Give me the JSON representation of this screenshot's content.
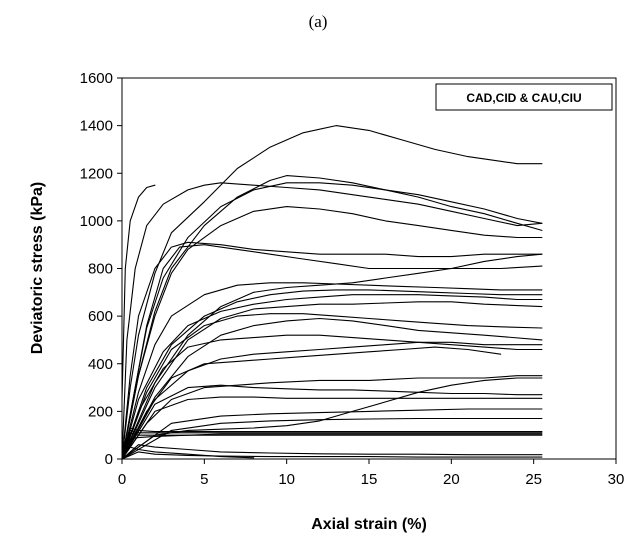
{
  "caption": "(a)",
  "chart_data": {
    "type": "line",
    "title": "",
    "xlabel": "Axial strain (%)",
    "ylabel": "Deviatoric stress (kPa)",
    "xlim": [
      0,
      30
    ],
    "ylim": [
      0,
      1600
    ],
    "xticks": [
      0,
      5,
      10,
      15,
      20,
      25,
      30
    ],
    "yticks": [
      0,
      200,
      400,
      600,
      800,
      1000,
      1200,
      1400,
      1600
    ],
    "grid": false,
    "legend": {
      "text": "CAD,CID & CAU,CIU",
      "position": "top-right"
    },
    "series": [
      {
        "x": [
          0,
          0.5,
          1,
          2,
          3,
          5,
          7,
          9,
          11,
          13,
          15,
          17,
          19,
          21,
          23,
          24,
          25.5
        ],
        "y": [
          0,
          300,
          520,
          780,
          950,
          1080,
          1220,
          1310,
          1370,
          1400,
          1380,
          1340,
          1300,
          1270,
          1250,
          1240,
          1240
        ]
      },
      {
        "x": [
          0,
          0.3,
          0.8,
          1.5,
          2.5,
          4,
          5,
          6,
          8,
          10,
          12,
          14,
          16,
          18,
          20,
          22,
          24,
          25.5
        ],
        "y": [
          0,
          500,
          800,
          980,
          1070,
          1130,
          1150,
          1160,
          1150,
          1140,
          1130,
          1110,
          1090,
          1070,
          1040,
          1010,
          980,
          990
        ]
      },
      {
        "x": [
          0,
          0.8,
          1.5,
          2.5,
          4,
          6,
          8,
          10,
          12,
          14,
          16,
          18,
          20,
          22,
          24,
          25.5
        ],
        "y": [
          0,
          300,
          550,
          760,
          930,
          1060,
          1130,
          1160,
          1160,
          1150,
          1130,
          1110,
          1080,
          1050,
          1010,
          990
        ]
      },
      {
        "x": [
          0,
          1,
          2,
          3,
          5,
          7,
          9,
          10,
          12,
          14,
          16,
          18,
          20,
          22,
          24,
          25.5
        ],
        "y": [
          0,
          350,
          620,
          800,
          980,
          1100,
          1170,
          1190,
          1180,
          1160,
          1130,
          1100,
          1060,
          1030,
          990,
          960
        ]
      },
      {
        "x": [
          0,
          1,
          2,
          3,
          4,
          6,
          8,
          10,
          12,
          14,
          16,
          18,
          20,
          22,
          24,
          25.5
        ],
        "y": [
          0,
          350,
          600,
          780,
          880,
          980,
          1040,
          1060,
          1050,
          1030,
          1000,
          980,
          960,
          940,
          930,
          930
        ]
      },
      {
        "x": [
          0,
          0.5,
          1,
          2,
          3,
          4,
          6,
          8,
          10,
          12,
          14,
          16,
          18,
          20,
          22,
          24,
          25.5
        ],
        "y": [
          0,
          350,
          600,
          800,
          890,
          910,
          900,
          880,
          870,
          860,
          860,
          860,
          850,
          850,
          860,
          860,
          860
        ]
      },
      {
        "x": [
          0,
          0.8,
          1.5,
          2.5,
          3.5,
          5,
          7,
          9,
          11,
          13,
          15,
          17,
          19,
          21,
          23,
          25.5
        ],
        "y": [
          0,
          300,
          560,
          800,
          890,
          900,
          880,
          860,
          840,
          820,
          800,
          800,
          800,
          800,
          800,
          810
        ]
      },
      {
        "x": [
          0,
          2,
          4,
          6,
          8,
          10,
          12,
          14,
          16,
          18,
          20,
          22,
          24,
          25.5
        ],
        "y": [
          0,
          320,
          520,
          640,
          700,
          720,
          730,
          740,
          760,
          780,
          800,
          830,
          850,
          860
        ]
      },
      {
        "x": [
          0,
          1,
          2,
          3,
          5,
          7,
          9,
          11,
          13,
          15,
          17,
          19,
          21,
          23,
          25.5
        ],
        "y": [
          0,
          280,
          480,
          600,
          690,
          730,
          740,
          740,
          735,
          730,
          725,
          720,
          715,
          710,
          710
        ]
      },
      {
        "x": [
          0,
          1.5,
          3,
          5,
          7,
          9,
          11,
          13,
          15,
          17,
          19,
          21,
          23,
          25.5
        ],
        "y": [
          0,
          300,
          480,
          600,
          660,
          690,
          705,
          710,
          710,
          705,
          700,
          695,
          690,
          690
        ]
      },
      {
        "x": [
          0,
          1,
          2.5,
          4,
          6,
          8,
          10,
          12,
          14,
          16,
          18,
          20,
          22,
          24,
          25.5
        ],
        "y": [
          0,
          250,
          450,
          560,
          620,
          650,
          670,
          680,
          690,
          690,
          690,
          685,
          680,
          670,
          670
        ]
      },
      {
        "x": [
          0,
          2,
          4,
          6,
          8,
          10,
          12,
          14,
          16,
          18,
          20,
          22,
          25.5
        ],
        "y": [
          0,
          300,
          500,
          590,
          630,
          640,
          650,
          650,
          655,
          660,
          660,
          650,
          640
        ]
      },
      {
        "x": [
          0,
          1.5,
          3,
          5,
          7,
          9,
          11,
          13,
          15,
          17,
          19,
          21,
          23,
          25.5
        ],
        "y": [
          0,
          280,
          460,
          560,
          600,
          610,
          610,
          600,
          590,
          580,
          570,
          560,
          555,
          550
        ]
      },
      {
        "x": [
          0,
          2,
          4,
          6,
          8,
          10,
          12,
          14,
          16,
          18,
          20,
          22,
          25.5
        ],
        "y": [
          0,
          260,
          430,
          520,
          560,
          580,
          590,
          580,
          560,
          540,
          530,
          520,
          500
        ]
      },
      {
        "x": [
          0,
          1,
          2.5,
          4,
          6,
          8,
          10,
          12,
          14,
          16,
          18,
          20,
          22,
          24,
          25.5
        ],
        "y": [
          0,
          200,
          380,
          470,
          500,
          510,
          520,
          520,
          510,
          500,
          490,
          480,
          470,
          460,
          460
        ]
      },
      {
        "x": [
          0,
          2,
          4,
          6,
          8,
          10,
          12,
          14,
          16,
          18,
          20,
          22,
          24,
          25.5
        ],
        "y": [
          0,
          250,
          370,
          420,
          440,
          450,
          460,
          470,
          480,
          490,
          490,
          480,
          480,
          480
        ]
      },
      {
        "x": [
          0,
          1.5,
          3,
          5,
          7,
          9,
          11,
          13,
          15,
          17,
          19,
          21,
          23
        ],
        "y": [
          0,
          200,
          340,
          400,
          410,
          420,
          430,
          440,
          450,
          460,
          470,
          460,
          440
        ]
      },
      {
        "x": [
          0,
          1.5,
          3,
          5,
          7,
          9,
          12,
          15,
          18,
          20,
          22,
          24,
          25.5
        ],
        "y": [
          0,
          150,
          250,
          300,
          310,
          320,
          330,
          330,
          340,
          340,
          340,
          350,
          350
        ]
      },
      {
        "x": [
          0,
          2,
          4,
          6,
          8,
          10,
          12,
          14,
          16,
          18,
          20,
          22,
          24,
          25.5
        ],
        "y": [
          0,
          230,
          300,
          310,
          300,
          295,
          290,
          290,
          285,
          280,
          275,
          275,
          270,
          270
        ]
      },
      {
        "x": [
          0,
          2,
          4,
          6,
          8,
          10,
          12,
          14,
          16,
          18,
          20,
          22,
          24,
          25.5
        ],
        "y": [
          0,
          200,
          250,
          260,
          260,
          255,
          255,
          255,
          255,
          255,
          255,
          255,
          255,
          255
        ]
      },
      {
        "x": [
          0,
          3,
          6,
          9,
          12,
          15,
          18,
          21,
          24,
          25.5
        ],
        "y": [
          0,
          150,
          180,
          190,
          195,
          200,
          205,
          210,
          210,
          210
        ]
      },
      {
        "x": [
          0,
          2,
          4,
          6,
          8,
          10,
          12,
          14,
          16,
          18,
          20,
          22,
          24,
          25.5
        ],
        "y": [
          0,
          100,
          120,
          125,
          130,
          140,
          160,
          200,
          240,
          280,
          310,
          330,
          340,
          340
        ]
      },
      {
        "x": [
          0,
          3,
          6,
          9,
          12,
          15,
          18,
          21,
          24,
          25.5
        ],
        "y": [
          0,
          120,
          150,
          160,
          165,
          168,
          170,
          170,
          170,
          170
        ]
      },
      {
        "x": [
          0,
          0.5,
          1,
          2,
          4,
          6,
          9,
          12,
          15,
          18,
          21,
          24,
          25.5
        ],
        "y": [
          0,
          110,
          100,
          100,
          100,
          105,
          105,
          105,
          105,
          105,
          105,
          105,
          105
        ]
      },
      {
        "x": [
          0,
          0.5,
          1,
          2,
          4,
          6,
          9,
          12,
          15,
          18,
          21,
          24,
          25.5
        ],
        "y": [
          0,
          120,
          110,
          110,
          110,
          110,
          110,
          110,
          110,
          110,
          110,
          110,
          110
        ]
      },
      {
        "x": [
          0,
          0.5,
          1,
          2,
          4,
          6,
          9,
          12,
          15,
          18,
          21,
          24,
          25.5
        ],
        "y": [
          0,
          130,
          120,
          115,
          115,
          115,
          115,
          115,
          115,
          115,
          115,
          115,
          115
        ]
      },
      {
        "x": [
          0,
          0.5,
          1,
          2,
          4,
          6,
          9,
          12,
          15,
          18,
          21,
          24,
          25.5
        ],
        "y": [
          0,
          85,
          90,
          95,
          100,
          100,
          100,
          100,
          100,
          100,
          100,
          100,
          100
        ]
      },
      {
        "x": [
          0,
          1,
          2,
          4,
          6,
          9,
          12,
          15,
          18,
          21,
          24,
          25.5
        ],
        "y": [
          0,
          60,
          50,
          40,
          30,
          25,
          22,
          20,
          20,
          18,
          18,
          18
        ]
      },
      {
        "x": [
          0,
          1,
          2,
          4,
          6,
          9,
          12,
          15,
          18,
          21,
          24,
          25.5
        ],
        "y": [
          0,
          30,
          20,
          15,
          12,
          10,
          10,
          10,
          8,
          8,
          8,
          8
        ]
      },
      {
        "x": [
          0,
          0.5,
          1,
          2,
          4,
          6,
          8
        ],
        "y": [
          0,
          50,
          40,
          30,
          20,
          10,
          5
        ]
      },
      {
        "x": [
          0,
          0.2,
          0.5,
          1,
          1.5,
          2
        ],
        "y": [
          250,
          800,
          1000,
          1100,
          1140,
          1150
        ]
      }
    ]
  }
}
